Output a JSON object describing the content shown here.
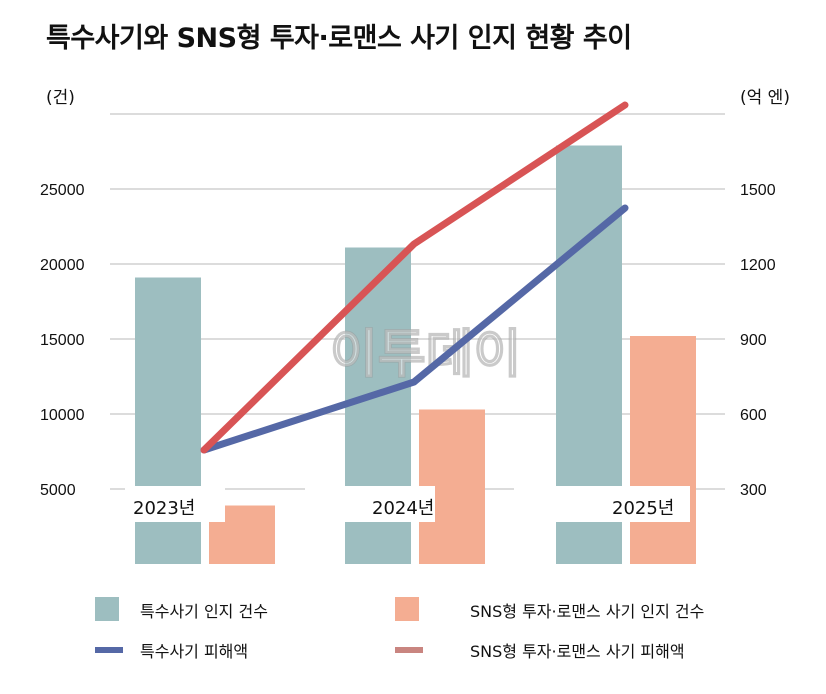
{
  "chart_data": {
    "type": "bar+line",
    "title": "특수사기와 SNS형 투자·로맨스 사기 인지 현황 추이",
    "left_unit": "(건)",
    "right_unit": "(억 엔)",
    "categories": [
      "2023년",
      "2024년",
      "2025년"
    ],
    "left_ticks": [
      "5000",
      "10000",
      "15000",
      "20000",
      "25000"
    ],
    "right_ticks": [
      "300",
      "600",
      "900",
      "1200",
      "1500"
    ],
    "left_axis": {
      "min": 0,
      "max": 30000
    },
    "right_axis": {
      "min": 0,
      "max": 1800
    },
    "grid": true,
    "legend_position": "bottom",
    "series": [
      {
        "name": "특수사기 인지 건수",
        "type": "bar",
        "axis": "left",
        "color": "#9dbec0",
        "values": [
          19100,
          21100,
          27900
        ]
      },
      {
        "name": "SNS형 투자·로맨스 사기 인지 건수",
        "type": "bar",
        "axis": "left",
        "color": "#f4ad92",
        "values": [
          3900,
          10300,
          15200
        ]
      },
      {
        "name": "특수사기 피해액",
        "type": "line",
        "axis": "right",
        "color": "#5568a6",
        "values": [
          456,
          728,
          1424
        ]
      },
      {
        "name": "SNS형 투자·로맨스 사기 피해액",
        "type": "line",
        "axis": "right",
        "color": "#d85455",
        "legend_color": "#c98580",
        "values": [
          456,
          1280,
          1836
        ]
      }
    ]
  },
  "watermark": "이투데이"
}
